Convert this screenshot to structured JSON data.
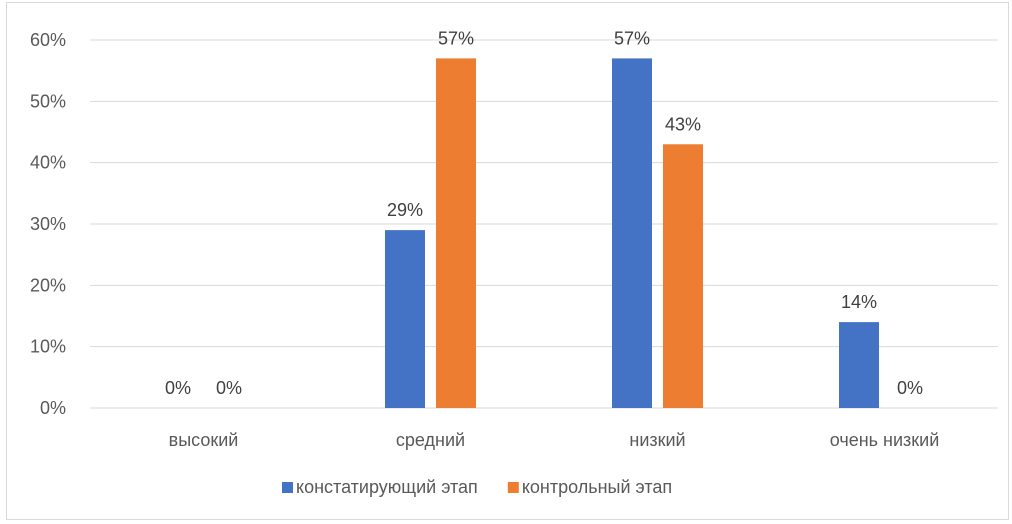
{
  "chart_data": {
    "type": "bar",
    "categories": [
      "высокий",
      "средний",
      "низкий",
      "очень низкий"
    ],
    "series": [
      {
        "name": "констатирующий этап",
        "values": [
          0,
          29,
          57,
          14
        ],
        "labels": [
          "0%",
          "29%",
          "57%",
          "14%"
        ],
        "color": "#4472C4"
      },
      {
        "name": "контрольный этап",
        "values": [
          0,
          57,
          43,
          0
        ],
        "labels": [
          "0%",
          "57%",
          "43%",
          "0%"
        ],
        "color": "#ED7D31"
      }
    ],
    "ylim": [
      0,
      60
    ],
    "yticks": [
      "0%",
      "10%",
      "20%",
      "30%",
      "40%",
      "50%",
      "60%"
    ],
    "grid": true,
    "legend_position": "bottom"
  }
}
